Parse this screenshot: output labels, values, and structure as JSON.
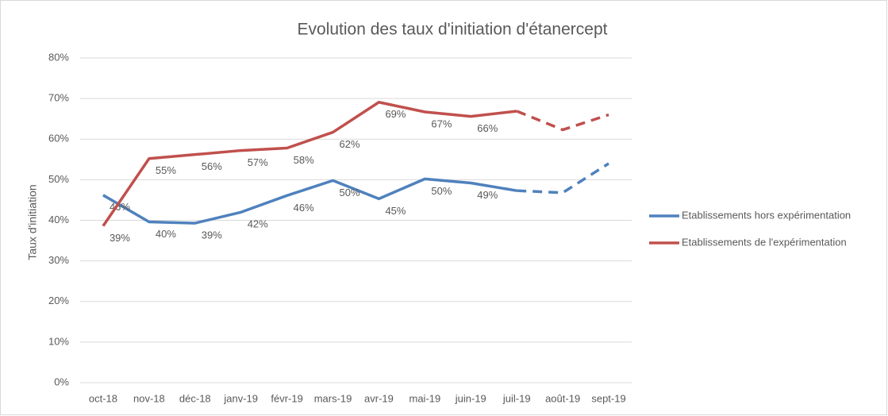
{
  "chart_data": {
    "type": "line",
    "title": "Evolution des taux d'initiation d'étanercept",
    "y_label": "Taux d'initiation",
    "categories": [
      "oct-18",
      "nov-18",
      "déc-18",
      "janv-19",
      "févr-19",
      "mars-19",
      "avr-19",
      "mai-19",
      "juin-19",
      "juil-19",
      "août-19",
      "sept-19"
    ],
    "series": [
      {
        "name": "Etablissements hors expérimentation",
        "color": "#4f81bd",
        "values": [
          46.2,
          39.6,
          39.3,
          42,
          46.1,
          49.8,
          45.3,
          50.2,
          49.2,
          47.3,
          46.8,
          54
        ],
        "value_labels": [
          "46%",
          "40%",
          "39%",
          "42%",
          "46%",
          "50%",
          "45%",
          "50%",
          "49%",
          null,
          null,
          null
        ]
      },
      {
        "name": "Etablissements de l'expérimentation",
        "color": "#c0504d",
        "values": [
          38.6,
          55.2,
          56.2,
          57.2,
          57.8,
          61.7,
          69.1,
          66.7,
          65.6,
          66.9,
          62.3,
          66
        ],
        "value_labels": [
          "39%",
          "55%",
          "56%",
          "57%",
          "58%",
          "62%",
          "69%",
          "67%",
          "66%",
          null,
          null,
          null
        ]
      }
    ],
    "dashed_from": 9,
    "ylim": [
      0,
      80
    ],
    "yticks": [
      {
        "value": 0,
        "label": "0%"
      },
      {
        "value": 10,
        "label": "10%"
      },
      {
        "value": 20,
        "label": "20%"
      },
      {
        "value": 30,
        "label": "30%"
      },
      {
        "value": 40,
        "label": "40%"
      },
      {
        "value": 50,
        "label": "50%"
      },
      {
        "value": 60,
        "label": "60%"
      },
      {
        "value": 70,
        "label": "70%"
      },
      {
        "value": 80,
        "label": "80%"
      }
    ],
    "grid": true,
    "legend": "right"
  }
}
